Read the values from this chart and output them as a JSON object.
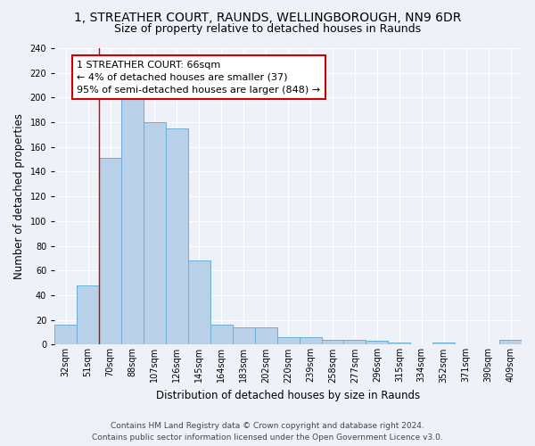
{
  "title_line1": "1, STREATHER COURT, RAUNDS, WELLINGBOROUGH, NN9 6DR",
  "title_line2": "Size of property relative to detached houses in Raunds",
  "xlabel": "Distribution of detached houses by size in Raunds",
  "ylabel": "Number of detached properties",
  "footer_line1": "Contains HM Land Registry data © Crown copyright and database right 2024.",
  "footer_line2": "Contains public sector information licensed under the Open Government Licence v3.0.",
  "categories": [
    "32sqm",
    "51sqm",
    "70sqm",
    "88sqm",
    "107sqm",
    "126sqm",
    "145sqm",
    "164sqm",
    "183sqm",
    "202sqm",
    "220sqm",
    "239sqm",
    "258sqm",
    "277sqm",
    "296sqm",
    "315sqm",
    "334sqm",
    "352sqm",
    "371sqm",
    "390sqm",
    "409sqm"
  ],
  "values": [
    16,
    48,
    151,
    201,
    180,
    175,
    68,
    16,
    14,
    14,
    6,
    6,
    4,
    4,
    3,
    2,
    0,
    2,
    0,
    0,
    4
  ],
  "bar_color": "#b8d0e8",
  "bar_edge_color": "#6aaed6",
  "highlight_index": 2,
  "highlight_color": "#cc0000",
  "annotation_line1": "1 STREATHER COURT: 66sqm",
  "annotation_line2": "← 4% of detached houses are smaller (37)",
  "annotation_line3": "95% of semi-detached houses are larger (848) →",
  "annotation_box_color": "#ffffff",
  "annotation_box_edge_color": "#cc0000",
  "ylim": [
    0,
    240
  ],
  "yticks": [
    0,
    20,
    40,
    60,
    80,
    100,
    120,
    140,
    160,
    180,
    200,
    220,
    240
  ],
  "bg_color": "#eef2f8",
  "grid_color": "#ffffff",
  "title_fontsize": 10,
  "subtitle_fontsize": 9,
  "ylabel_fontsize": 8.5,
  "xlabel_fontsize": 8.5,
  "tick_fontsize": 7,
  "annotation_fontsize": 8,
  "footer_fontsize": 6.5
}
